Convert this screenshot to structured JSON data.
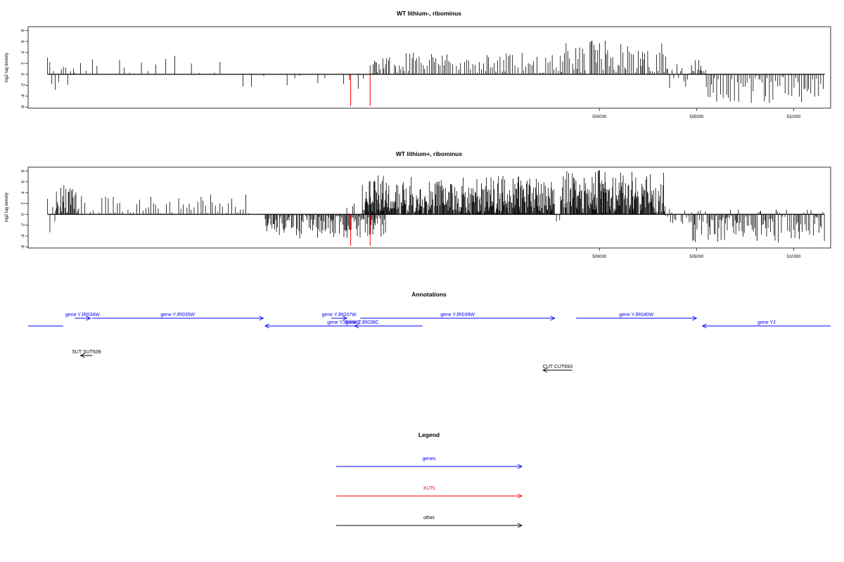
{
  "figure": {
    "annotations_title": "Annotations",
    "legend_title": "Legend"
  },
  "chart_data": [
    {
      "type": "bar",
      "title": "WT lithium-, ribominus",
      "ylabel": "log2 tag density",
      "xlabel": "",
      "xlim": [
        470600,
        511900
      ],
      "ylim": [
        -6.2,
        8.7
      ],
      "yticks": [
        -6,
        -4,
        -2,
        0,
        2,
        4,
        6,
        8
      ],
      "xticks": [
        500000,
        505000,
        510000
      ],
      "grid": false,
      "baseline": [
        471600,
        511600
      ],
      "series": [
        {
          "color": "#000000",
          "segments": [
            {
              "range": [
                471600,
                472000
              ],
              "step": 120,
              "min": -3.5,
              "max": 4.5
            },
            {
              "range": [
                472000,
                473000
              ],
              "step": 130,
              "min": -3.2,
              "max": 2.5
            },
            {
              "range": [
                473000,
                481000
              ],
              "step": 370,
              "min": 0,
              "max": 3.4,
              "fill": 0.7
            },
            {
              "range": [
                481000,
                488000
              ],
              "step": 330,
              "min": -2.9,
              "max": 0,
              "fill": 0.7
            },
            {
              "range": [
                488200,
                489200
              ],
              "step": 70,
              "min": 0,
              "max": 3.0
            },
            {
              "range": [
                489200,
                498000
              ],
              "step": 95,
              "min": 0,
              "max": 4.0
            },
            {
              "range": [
                498000,
                503500
              ],
              "step": 80,
              "min": 0,
              "max": 6.3
            },
            {
              "range": [
                503500,
                504800
              ],
              "step": 95,
              "min": -2.8,
              "max": 2.0
            },
            {
              "range": [
                504800,
                505500
              ],
              "step": 60,
              "min": 0,
              "max": 3.6
            },
            {
              "range": [
                505500,
                511600
              ],
              "step": 95,
              "min": -5.5,
              "max": -1.0
            }
          ]
        },
        {
          "color": "#ff0000",
          "bars": [
            [
              487200,
              -5.8
            ],
            [
              488200,
              -5.8
            ]
          ]
        }
      ]
    },
    {
      "type": "bar",
      "title": "WT lithium+, ribominus",
      "ylabel": "log2 tag density",
      "xlabel": "",
      "xlim": [
        470600,
        511900
      ],
      "ylim": [
        -6.2,
        8.7
      ],
      "yticks": [
        -6,
        -4,
        -2,
        0,
        2,
        4,
        6,
        8
      ],
      "xticks": [
        500000,
        505000,
        510000
      ],
      "grid": false,
      "baseline": [
        471600,
        511600
      ],
      "series": [
        {
          "color": "#000000",
          "segments": [
            {
              "range": [
                471600,
                472000
              ],
              "step": 110,
              "min": -3.5,
              "max": 3.0
            },
            {
              "range": [
                472000,
                473200
              ],
              "step": 40,
              "min": 0,
              "max": 5.8
            },
            {
              "range": [
                473200,
                482000
              ],
              "step": 140,
              "min": 0,
              "max": 3.8
            },
            {
              "range": [
                482800,
                489000
              ],
              "step": 50,
              "min": -4.5,
              "max": 0
            },
            {
              "range": [
                487000,
                487400
              ],
              "step": 80,
              "min": 0,
              "max": 2.0
            },
            {
              "range": [
                487800,
                497700
              ],
              "step": 30,
              "min": 0,
              "max": 7.2
            },
            {
              "range": [
                497700,
                498000
              ],
              "step": 100,
              "min": -2.0,
              "max": 0
            },
            {
              "range": [
                498000,
                503400
              ],
              "step": 30,
              "min": 0,
              "max": 8.2
            },
            {
              "range": [
                503400,
                504800
              ],
              "step": 80,
              "min": -1.8,
              "max": 1.0
            },
            {
              "range": [
                504800,
                511600
              ],
              "step": 60,
              "min": -5.2,
              "max": 1.0
            }
          ]
        },
        {
          "color": "#ff0000",
          "bars": [
            [
              487200,
              -5.8
            ],
            [
              488200,
              -5.8
            ]
          ]
        }
      ]
    }
  ],
  "annotations": {
    "genes": [
      {
        "label": "",
        "x1": 470600,
        "x2": 472400,
        "dir": "none",
        "row": 2
      },
      {
        "label": "gene YJR034W",
        "x1": 473000,
        "x2": 473800,
        "dir": "right",
        "row": 1
      },
      {
        "label": "gene YJR035W",
        "x1": 473900,
        "x2": 482700,
        "dir": "right",
        "row": 1
      },
      {
        "label": "gene YJR036C",
        "x1": 482800,
        "x2": 490900,
        "dir": "left",
        "row": 2
      },
      {
        "label": "gene YJR037W",
        "x1": 486200,
        "x2": 487000,
        "dir": "right",
        "row": 1
      },
      {
        "label": "gene YJR038C",
        "x1": 487400,
        "x2": 488200,
        "dir": "left",
        "row": 2
      },
      {
        "label": "gene YJR039W",
        "x1": 487700,
        "x2": 497700,
        "dir": "right",
        "row": 1
      },
      {
        "label": "gene YJR040W",
        "x1": 498800,
        "x2": 505000,
        "dir": "right",
        "row": 1
      },
      {
        "label": "gene YJ",
        "x1": 505300,
        "x2": 511900,
        "dir": "left",
        "row": 2
      }
    ],
    "other": [
      {
        "label": "SUT SUT639",
        "x1": 473300,
        "x2": 473900,
        "dir": "left"
      },
      {
        "label": "CUT CUT693",
        "x1": 497100,
        "x2": 498600,
        "dir": "left"
      }
    ]
  },
  "legend": [
    {
      "label": "genes",
      "color": "#0000ff"
    },
    {
      "label": "XUTs",
      "color": "#ff0000"
    },
    {
      "label": "other",
      "color": "#000000"
    }
  ]
}
